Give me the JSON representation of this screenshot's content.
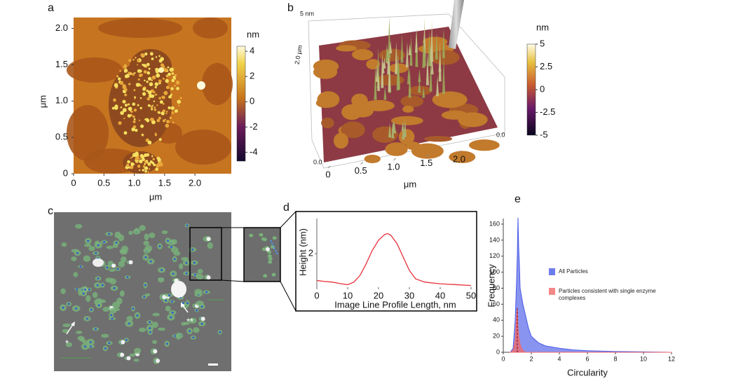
{
  "panel_labels": [
    "a",
    "b",
    "c",
    "d",
    "e"
  ],
  "chart_data": [
    {
      "type": "heatmap",
      "xlabel": "μm",
      "ylabel": "μm",
      "xlim": [
        0,
        2.6
      ],
      "ylim": [
        0,
        2.15
      ],
      "xticks": [
        0,
        0.5,
        {
          "value": 1,
          "label": "1.0"
        },
        1.5,
        {
          "value": 2,
          "label": "2.0"
        }
      ],
      "yticks": [
        0,
        0.5,
        {
          "value": 1,
          "label": "1.0"
        },
        1.5,
        {
          "value": 2,
          "label": "2.0"
        }
      ],
      "colorbar_label": "nm",
      "clim": [
        -4.7,
        4.4
      ],
      "cticks": [
        4,
        2,
        0,
        -2,
        -4
      ]
    },
    {
      "type": "surface",
      "xlabel": "μm",
      "xlim": [
        0,
        2.6
      ],
      "xticks": [
        0,
        0.5,
        {
          "value": 1,
          "label": "1.0"
        },
        1.5,
        {
          "value": 2,
          "label": "2.0"
        }
      ],
      "annotations": [
        "5 nm",
        "2.0 μm",
        "0.0",
        "0.0"
      ],
      "colorbar_label": "nm",
      "clim": [
        -5,
        5
      ],
      "cticks": [
        5,
        2.5,
        0,
        -2.5,
        -5
      ]
    },
    {
      "type": "image",
      "annotations": [
        "*",
        "**"
      ]
    },
    {
      "type": "line",
      "xlabel": "Image Line Profile Length, nm",
      "ylabel": "Height (nm)",
      "x": [
        0,
        2,
        5,
        8,
        10,
        12,
        14,
        16,
        18,
        20,
        22,
        23,
        24,
        26,
        28,
        30,
        32,
        35,
        40,
        45,
        50
      ],
      "series": [
        {
          "color": "#e8303a",
          "values": [
            0.4,
            0.35,
            0.3,
            0.2,
            0.15,
            0.3,
            0.7,
            1.4,
            2.2,
            2.8,
            3.15,
            3.2,
            3.1,
            2.6,
            1.8,
            1.0,
            0.5,
            0.3,
            0.2,
            0.15,
            0.1
          ]
        }
      ],
      "xlim": [
        0,
        50
      ],
      "ylim": [
        0,
        4.1
      ],
      "xticks": [
        0,
        10,
        20,
        30,
        40,
        50
      ],
      "yticks": [
        2
      ]
    },
    {
      "type": "area",
      "xlabel": "Circularity",
      "ylabel": "Frequency",
      "x": [
        0.5,
        0.7,
        0.85,
        0.95,
        1.0,
        1.05,
        1.1,
        1.15,
        1.2,
        1.3,
        1.4,
        1.6,
        1.8,
        2.0,
        2.5,
        3,
        4,
        5,
        6,
        8,
        10,
        12
      ],
      "series": [
        {
          "name": "All Particles",
          "color": "#4a5be8",
          "values": [
            0,
            5,
            40,
            90,
            120,
            168,
            130,
            110,
            80,
            70,
            60,
            45,
            30,
            20,
            12,
            8,
            5,
            3,
            2,
            1,
            0.5,
            0
          ]
        },
        {
          "name": "Particles consistent with single enzyme complexes",
          "color": "#f26a6a",
          "values": [
            0,
            2,
            15,
            45,
            55,
            30,
            20,
            15,
            10,
            5,
            2,
            0,
            0,
            0,
            0,
            0,
            0,
            0,
            0,
            0,
            0,
            0
          ]
        }
      ],
      "xlim": [
        0,
        12
      ],
      "ylim": [
        0,
        167
      ],
      "xticks": [
        0,
        2,
        4,
        6,
        8,
        10,
        12
      ],
      "yticks": [
        0,
        20,
        40,
        60,
        80,
        100,
        120,
        140,
        160
      ]
    }
  ]
}
